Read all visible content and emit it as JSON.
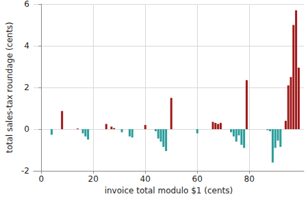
{
  "chart_data": {
    "type": "bar",
    "x_label": "invoice total modulo $1 (cents)",
    "y_label": "total sales-tax roundage (cents)",
    "x": [
      4,
      8,
      14,
      16,
      17,
      18,
      25,
      27,
      28,
      31,
      34,
      35,
      40,
      44,
      45,
      46,
      47,
      48,
      50,
      60,
      66,
      67,
      68,
      69,
      73,
      74,
      75,
      76,
      77,
      78,
      79,
      87,
      88,
      89,
      90,
      91,
      92,
      94,
      95,
      96,
      97,
      98,
      99
    ],
    "values": [
      -0.27,
      0.87,
      0.03,
      -0.2,
      -0.35,
      -0.5,
      0.25,
      0.12,
      0.05,
      -0.15,
      -0.35,
      -0.4,
      0.2,
      -0.1,
      -0.45,
      -0.6,
      -0.85,
      -1.05,
      1.5,
      -0.2,
      0.35,
      0.3,
      0.25,
      0.3,
      -0.15,
      -0.35,
      -0.6,
      -0.3,
      -0.75,
      -0.9,
      2.35,
      -0.05,
      -0.1,
      -1.6,
      -0.9,
      -0.55,
      -0.85,
      0.4,
      2.1,
      2.5,
      5.0,
      5.7,
      2.95
    ],
    "colors": [
      "#2a9d9a",
      "#a01818",
      "#a01818",
      "#2a9d9a",
      "#2a9d9a",
      "#2a9d9a",
      "#a01818",
      "#a01818",
      "#a01818",
      "#2a9d9a",
      "#2a9d9a",
      "#2a9d9a",
      "#a01818",
      "#2a9d9a",
      "#2a9d9a",
      "#2a9d9a",
      "#2a9d9a",
      "#2a9d9a",
      "#a01818",
      "#2a9d9a",
      "#a01818",
      "#a01818",
      "#a01818",
      "#a01818",
      "#2a9d9a",
      "#2a9d9a",
      "#2a9d9a",
      "#2a9d9a",
      "#2a9d9a",
      "#2a9d9a",
      "#a01818",
      "#2a9d9a",
      "#2a9d9a",
      "#2a9d9a",
      "#2a9d9a",
      "#2a9d9a",
      "#2a9d9a",
      "#a01818",
      "#a01818",
      "#a01818",
      "#a01818",
      "#a01818",
      "#a01818"
    ],
    "xlim": [
      -3,
      101
    ],
    "xticks": [
      0,
      20,
      40,
      60,
      80
    ],
    "ylim": [
      -2,
      6
    ],
    "yticks": [
      -2,
      0,
      2,
      4,
      6
    ],
    "grid": true
  }
}
